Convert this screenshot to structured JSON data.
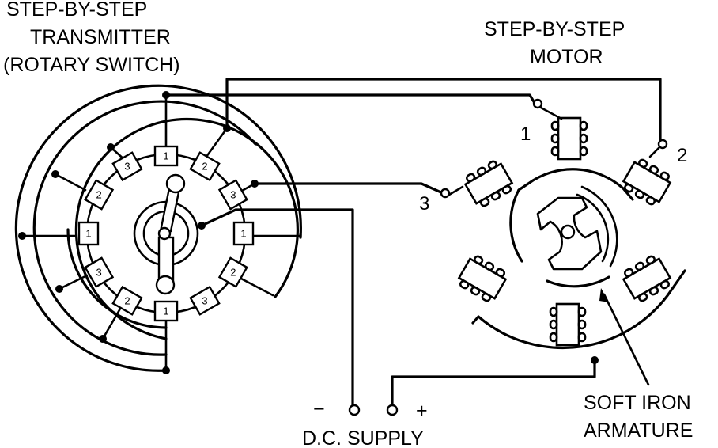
{
  "transmitter": {
    "title_line1": "STEP-BY-STEP",
    "title_line2": "TRANSMITTER",
    "title_line3": "(ROTARY SWITCH)",
    "segments": [
      "1",
      "2",
      "3",
      "1",
      "2",
      "3",
      "1",
      "2",
      "3",
      "1",
      "2",
      "3"
    ]
  },
  "motor": {
    "title_line1": "STEP-BY-STEP",
    "title_line2": "MOTOR",
    "terminal_1": "1",
    "terminal_2": "2",
    "terminal_3": "3",
    "armature_line1": "SOFT IRON",
    "armature_line2": "ARMATURE"
  },
  "supply": {
    "label": "D.C. SUPPLY",
    "minus": "−",
    "plus": "+"
  }
}
